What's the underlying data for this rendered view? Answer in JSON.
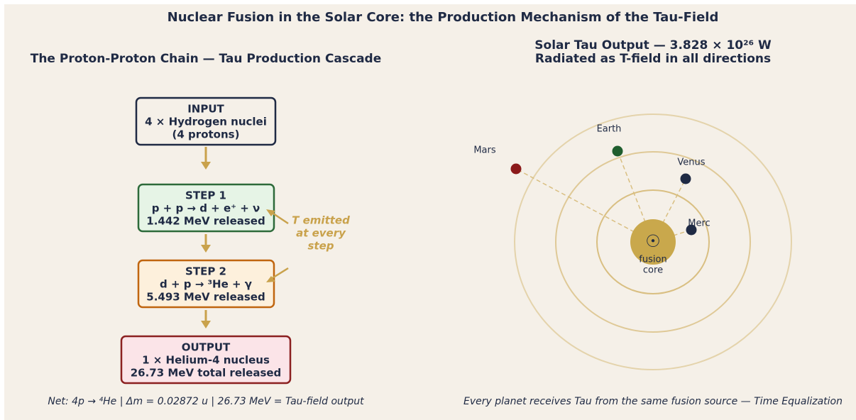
{
  "title": "Nuclear Fusion in the Solar Core: the Production Mechanism of the Tau-Field",
  "left": {
    "title": "The Proton-Proton Chain — Tau Production Cascade",
    "boxes": [
      {
        "lines": [
          "INPUT",
          "4 × Hydrogen nuclei",
          "(4 protons)"
        ]
      },
      {
        "lines": [
          "STEP 1",
          "p + p → d + e⁺ + ν",
          "1.442 MeV released"
        ]
      },
      {
        "lines": [
          "STEP 2",
          "d + p → ³He + γ",
          "5.493 MeV released"
        ]
      },
      {
        "lines": [
          "OUTPUT",
          "1 × Helium-4 nucleus",
          "26.73 MeV total released"
        ]
      }
    ],
    "annotation": [
      "T emitted",
      "at every",
      "step"
    ],
    "footer": "Net: 4p → ⁴He  |  Δm = 0.02872 u  |  26.73 MeV = Tau-field output"
  },
  "right": {
    "title": [
      "Solar Tau Output — 3.828 × 10²⁶ W",
      "Radiated as T-field in all directions"
    ],
    "sun_symbol": "☉",
    "sun_label": [
      "fusion",
      "core"
    ],
    "planets": [
      "Mars",
      "Earth",
      "Venus",
      "Merc"
    ],
    "footer": "Every planet receives Tau from the same fusion source — Time Equalization"
  }
}
